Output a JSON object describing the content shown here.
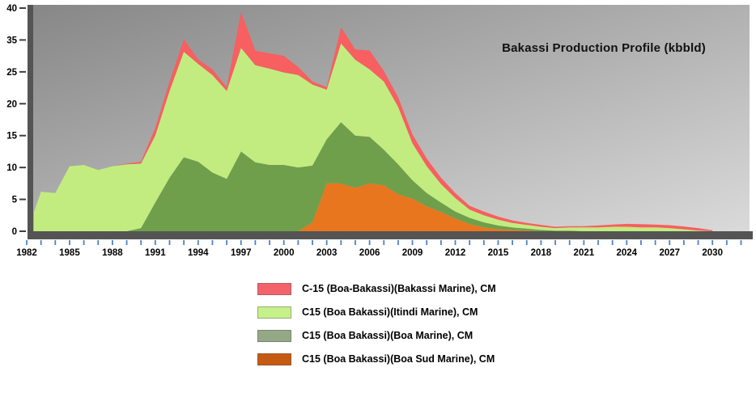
{
  "title": "Bakassi Production Profile (kbbld)",
  "y_axis": {
    "tick_labels": [
      "40",
      "35",
      "25",
      "20",
      "15",
      "10",
      "5",
      "0"
    ],
    "note": "labels evenly spaced top-to-bottom; a 30 label is not shown between 35 and 25",
    "tick_color": "#3f3f3f"
  },
  "x_axis": {
    "tick_labels": [
      "1982",
      "1985",
      "1988",
      "1991",
      "1994",
      "1997",
      "2000",
      "2003",
      "2006",
      "2009",
      "2012",
      "2015",
      "2018",
      "2021",
      "2024",
      "2027",
      "2030"
    ],
    "minor_ticks": "every year 1982-2032",
    "tick_color": "#4f81bd"
  },
  "legend": {
    "items": [
      {
        "key": "bakassi-marine",
        "label": "C-15 (Boa-Bakassi)(Bakassi Marine), CM",
        "swatch_color": "#F4636B"
      },
      {
        "key": "itindi-marine",
        "label": "C15 (Boa Bakassi)(Itindi Marine), CM",
        "swatch_color": "#C6F18A"
      },
      {
        "key": "boa-marine",
        "label": "C15 (Boa Bakassi)(Boa Marine), CM",
        "swatch_color": "#94A886"
      },
      {
        "key": "boa-sud-marine",
        "label": "C15 (Boa Bakassi)(Boa Sud Marine), CM",
        "swatch_color": "#C55A11"
      }
    ]
  },
  "chart_data": {
    "type": "area",
    "stacked": true,
    "title": "Bakassi Production Profile (kbbld)",
    "xlabel": "",
    "ylabel": "",
    "ylim": [
      0,
      40
    ],
    "grid": false,
    "legend_position": "below-chart",
    "plot_style": {
      "bg_gradient": [
        "#878787",
        "#DADADA"
      ],
      "axis_frame_color": "#545454"
    },
    "x": [
      1982,
      1983,
      1984,
      1985,
      1986,
      1987,
      1988,
      1989,
      1990,
      1991,
      1992,
      1993,
      1994,
      1995,
      1996,
      1997,
      1998,
      1999,
      2000,
      2001,
      2002,
      2003,
      2004,
      2005,
      2006,
      2007,
      2008,
      2009,
      2010,
      2011,
      2012,
      2013,
      2014,
      2015,
      2016,
      2017,
      2018,
      2019,
      2020,
      2021,
      2022,
      2023,
      2024,
      2025,
      2026,
      2027,
      2028,
      2029,
      2030
    ],
    "series": [
      {
        "name": "C15 (Boa Bakassi)(Boa Sud Marine), CM",
        "key": "boa-sud-marine",
        "color": "#E8761F",
        "values": [
          0,
          0,
          0,
          0,
          0,
          0,
          0,
          0,
          0,
          0,
          0,
          0,
          0,
          0,
          0,
          0,
          0,
          0,
          0,
          0,
          1.4,
          7.5,
          7.5,
          6.8,
          7.5,
          7.2,
          5.8,
          5.1,
          3.9,
          3.0,
          2.0,
          1.1,
          0.6,
          0.3,
          0.2,
          0.1,
          0,
          0,
          0,
          0,
          0,
          0,
          0,
          0,
          0,
          0,
          0,
          0,
          0
        ]
      },
      {
        "name": "C15 (Boa Bakassi)(Boa Marine), CM",
        "key": "boa-marine",
        "color": "#6F9F4B",
        "values": [
          0,
          0,
          0,
          0,
          0,
          0,
          0,
          0,
          0.5,
          4.5,
          8.4,
          11.6,
          10.9,
          9.2,
          8.2,
          12.5,
          10.8,
          10.4,
          10.4,
          10.0,
          8.9,
          6.9,
          9.6,
          8.2,
          7.3,
          5.6,
          4.7,
          2.9,
          2.1,
          1.5,
          1.1,
          1.0,
          0.8,
          0.6,
          0.4,
          0.3,
          0.2,
          0.1,
          0.1,
          0,
          0,
          0,
          0,
          0,
          0,
          0,
          0,
          0,
          0
        ]
      },
      {
        "name": "C15 (Boa Bakassi)(Itindi Marine), CM",
        "key": "itindi-marine",
        "color": "#C2EC80",
        "values": [
          3.0,
          6.2,
          6.0,
          10.2,
          10.4,
          9.6,
          10.2,
          10.5,
          10.1,
          10.5,
          13.6,
          19.7,
          16.6,
          15.3,
          13.8,
          20.0,
          16.3,
          15.6,
          14.5,
          14.5,
          12.7,
          7.8,
          16.8,
          13.8,
          11.0,
          10.7,
          9.0,
          5.8,
          4.2,
          2.9,
          2.1,
          1.3,
          1.1,
          0.9,
          0.7,
          0.6,
          0.5,
          0.4,
          0.5,
          0.6,
          0.6,
          0.7,
          0.7,
          0.6,
          0.6,
          0.5,
          0.3,
          0.1,
          0
        ]
      },
      {
        "name": "C-15 (Boa-Bakassi)(Bakassi Marine), CM",
        "key": "bakassi-marine",
        "color": "#F75F60",
        "values": [
          0,
          0,
          0,
          0,
          0,
          0,
          0,
          0.1,
          0.3,
          1.2,
          1.5,
          3.8,
          1.4,
          1.3,
          0.6,
          6.9,
          4.5,
          4.8,
          5.1,
          2.0,
          0.5,
          0.4,
          3.1,
          3.2,
          5.9,
          1.8,
          1.5,
          1.4,
          1.2,
          1.0,
          0.8,
          0.6,
          0.6,
          0.5,
          0.4,
          0.3,
          0.3,
          0.2,
          0.2,
          0.2,
          0.3,
          0.35,
          0.45,
          0.5,
          0.45,
          0.45,
          0.45,
          0.4,
          0.15
        ]
      }
    ]
  }
}
